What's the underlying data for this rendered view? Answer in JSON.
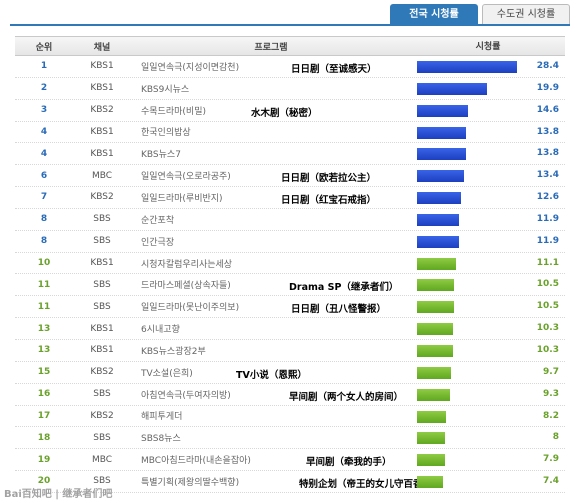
{
  "tabs": [
    {
      "label": "전국 시청률",
      "active": true
    },
    {
      "label": "수도권 시청률",
      "active": false
    }
  ],
  "header": {
    "rank": "순위",
    "channel": "채널",
    "program": "프로그램",
    "rating": "시청률"
  },
  "max_rating": 28.4,
  "rows": [
    {
      "rank": "1",
      "channel": "KBS1",
      "program": "일일연속극(지성이면감천)",
      "note": "日日剧（至诚感天）",
      "rating": 28.4,
      "color": "blue"
    },
    {
      "rank": "2",
      "channel": "KBS1",
      "program": "KBS9시뉴스",
      "note": "",
      "rating": 19.9,
      "color": "blue"
    },
    {
      "rank": "3",
      "channel": "KBS2",
      "program": "수목드라마(비밀)",
      "note": "水木剧（秘密）",
      "rating": 14.6,
      "color": "blue"
    },
    {
      "rank": "4",
      "channel": "KBS1",
      "program": "한국인의밥상",
      "note": "",
      "rating": 13.8,
      "color": "blue"
    },
    {
      "rank": "4",
      "channel": "KBS1",
      "program": "KBS뉴스7",
      "note": "",
      "rating": 13.8,
      "color": "blue"
    },
    {
      "rank": "6",
      "channel": "MBC",
      "program": "일일연속극(오로라공주)",
      "note": "日日剧（欧若拉公主）",
      "rating": 13.4,
      "color": "blue"
    },
    {
      "rank": "7",
      "channel": "KBS2",
      "program": "일일드라마(루비반지)",
      "note": "日日剧（红宝石戒指）",
      "rating": 12.6,
      "color": "blue"
    },
    {
      "rank": "8",
      "channel": "SBS",
      "program": "순간포착",
      "note": "",
      "rating": 11.9,
      "color": "blue"
    },
    {
      "rank": "8",
      "channel": "SBS",
      "program": "인간극장",
      "note": "",
      "rating": 11.9,
      "color": "blue"
    },
    {
      "rank": "10",
      "channel": "KBS1",
      "program": "시청자칼럼우리사는세상",
      "note": "",
      "rating": 11.1,
      "color": "green"
    },
    {
      "rank": "11",
      "channel": "SBS",
      "program": "드라마스페셜(상속자들)",
      "note": "Drama SP（继承者们）",
      "rating": 10.5,
      "color": "green"
    },
    {
      "rank": "11",
      "channel": "SBS",
      "program": "일일드라마(못난이주의보)",
      "note": "日日剧（丑八怪警报）",
      "rating": 10.5,
      "color": "green"
    },
    {
      "rank": "13",
      "channel": "KBS1",
      "program": "6시내고향",
      "note": "",
      "rating": 10.3,
      "color": "green"
    },
    {
      "rank": "13",
      "channel": "KBS1",
      "program": "KBS뉴스광장2부",
      "note": "",
      "rating": 10.3,
      "color": "green"
    },
    {
      "rank": "15",
      "channel": "KBS2",
      "program": "TV소설(은희)",
      "note": "TV小说（恩熙）",
      "rating": 9.7,
      "color": "green"
    },
    {
      "rank": "16",
      "channel": "SBS",
      "program": "아침연속극(두여자의방)",
      "note": "早间剧（两个女人的房间）",
      "rating": 9.3,
      "color": "green"
    },
    {
      "rank": "17",
      "channel": "KBS2",
      "program": "해피투게더",
      "note": "",
      "rating": 8.2,
      "color": "green"
    },
    {
      "rank": "18",
      "channel": "SBS",
      "program": "SBS8뉴스",
      "note": "",
      "rating": 8,
      "color": "green"
    },
    {
      "rank": "19",
      "channel": "MBC",
      "program": "MBC아침드라마(내손을잡아)",
      "note": "早间剧（牵我的手）",
      "rating": 7.9,
      "color": "green"
    },
    {
      "rank": "20",
      "channel": "SBS",
      "program": "특별기획(제왕의딸수백향)",
      "note": "特别企划（帝王的女儿守百香）",
      "rating": 7.4,
      "color": "green"
    }
  ],
  "watermark": "Bai百知吧 | 继承者们吧"
}
